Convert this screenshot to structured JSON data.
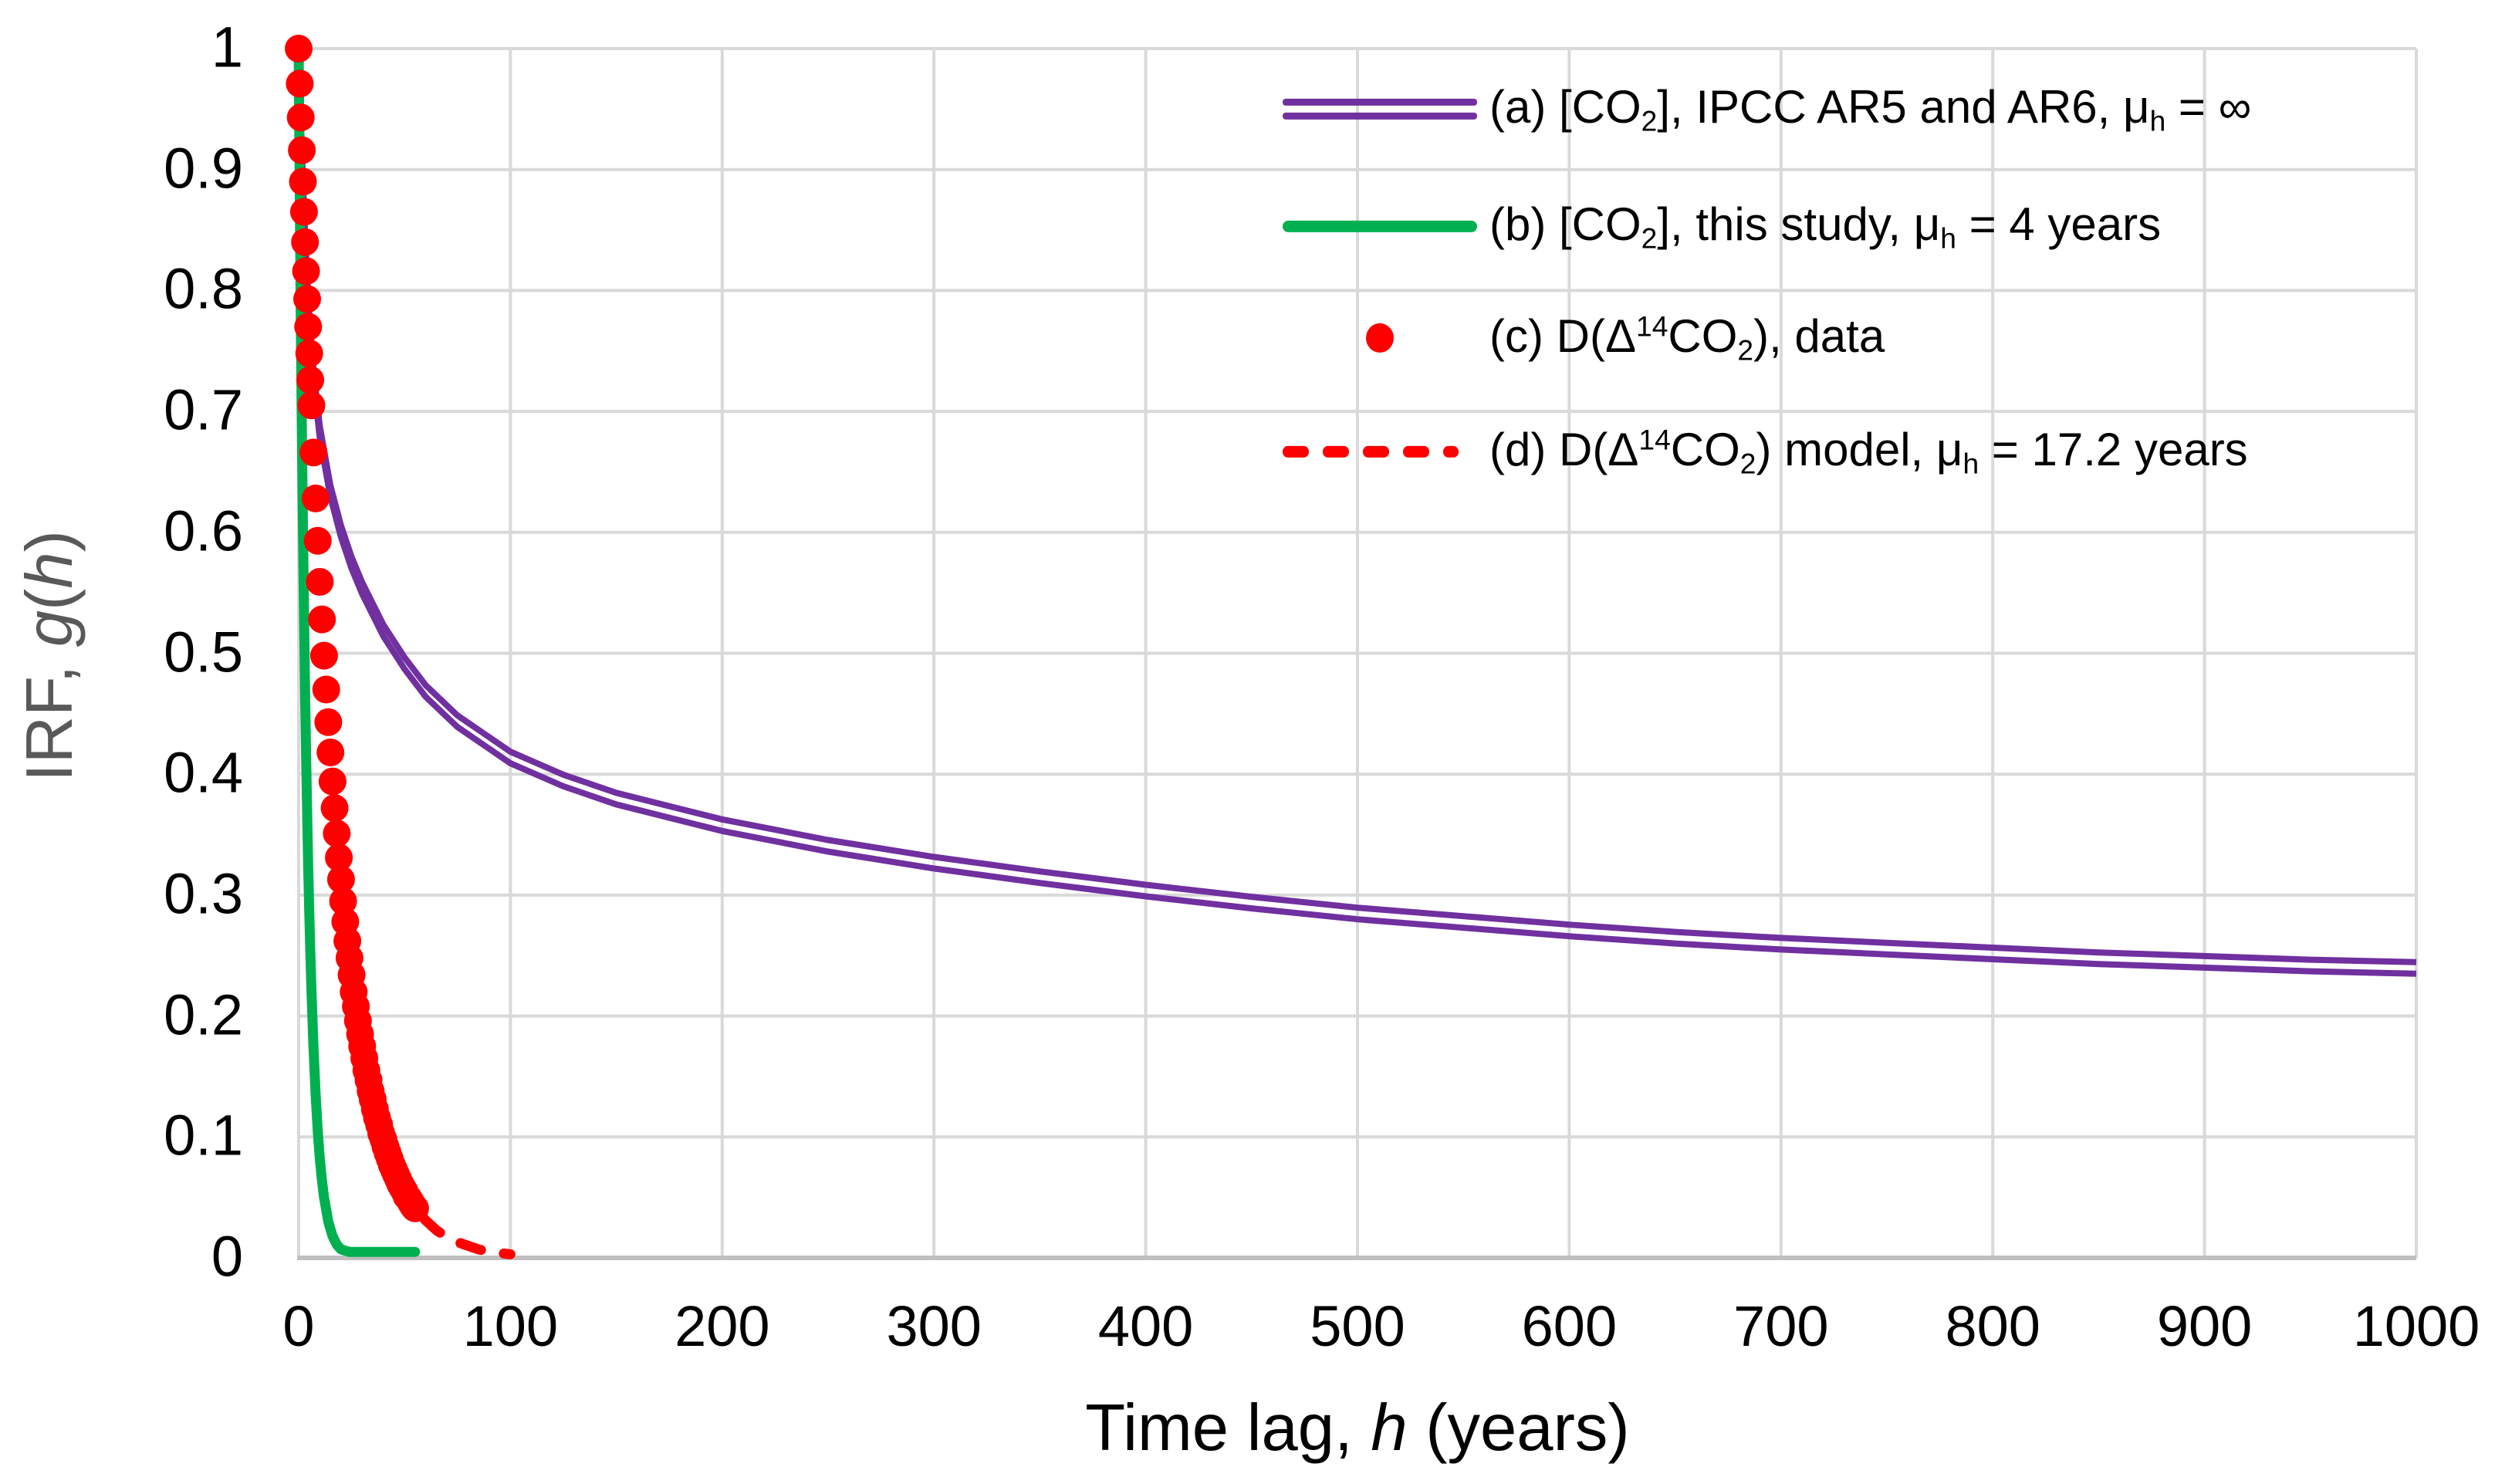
{
  "figure": {
    "background": "#FFFFFF"
  },
  "colors": {
    "gridline": "#D9D9D9",
    "axis_line": "#BFBFBF",
    "tick_label": "#000000",
    "x_title": "#000000",
    "y_title": "#595959",
    "purple": "#7030A0",
    "green": "#00B050",
    "red": "#FF0000"
  },
  "chart_data": {
    "type": "line",
    "title": "",
    "xlabel_parts": [
      {
        "t": "Time lag, "
      },
      {
        "t": "h",
        "i": true
      },
      {
        "t": " (years)"
      }
    ],
    "ylabel_parts": [
      {
        "t": "IRF, "
      },
      {
        "t": "g",
        "i": true
      },
      {
        "t": "("
      },
      {
        "t": "h",
        "i": true
      },
      {
        "t": ")"
      }
    ],
    "xlim": [
      0,
      1000
    ],
    "ylim": [
      0,
      1
    ],
    "grid": true,
    "legend_position": "top-right-inside",
    "x_ticks": [
      0,
      100,
      200,
      300,
      400,
      500,
      600,
      700,
      800,
      900,
      1000
    ],
    "x_tick_labels": [
      "0",
      "100",
      "200",
      "300",
      "400",
      "500",
      "600",
      "700",
      "800",
      "900",
      "1000"
    ],
    "y_ticks": [
      0,
      0.1,
      0.2,
      0.3,
      0.4,
      0.5,
      0.6,
      0.7,
      0.8,
      0.9,
      1
    ],
    "y_tick_labels": [
      "0",
      "0.1",
      "0.2",
      "0.3",
      "0.4",
      "0.5",
      "0.6",
      "0.7",
      "0.8",
      "0.9",
      "1"
    ],
    "series": [
      {
        "id": "a",
        "type": "line",
        "style": "double-line",
        "color": "#7030A0",
        "mu_h": "infinity",
        "name_parts": [
          {
            "t": "(a) [CO"
          },
          {
            "t": "2",
            "sub": true
          },
          {
            "t": "], IPCC AR5 and AR6, μ"
          },
          {
            "t": "h",
            "sub": true
          },
          {
            "t": " = ∞"
          }
        ],
        "h": [
          0,
          1,
          2,
          3,
          4,
          5,
          7,
          10,
          15,
          20,
          25,
          30,
          40,
          50,
          60,
          75,
          100,
          125,
          150,
          200,
          250,
          300,
          350,
          400,
          450,
          500,
          550,
          600,
          650,
          700,
          750,
          800,
          850,
          900,
          950,
          1000
        ],
        "g": [
          1.0,
          0.935,
          0.881,
          0.838,
          0.801,
          0.772,
          0.725,
          0.678,
          0.629,
          0.596,
          0.57,
          0.549,
          0.514,
          0.487,
          0.464,
          0.439,
          0.409,
          0.39,
          0.375,
          0.353,
          0.336,
          0.322,
          0.31,
          0.299,
          0.289,
          0.28,
          0.273,
          0.266,
          0.26,
          0.255,
          0.251,
          0.247,
          0.243,
          0.24,
          0.237,
          0.235
        ]
      },
      {
        "id": "b",
        "type": "line",
        "style": "solid-thick",
        "color": "#00B050",
        "mu_h": "4 years",
        "name_parts": [
          {
            "t": "(b) [CO"
          },
          {
            "t": "2",
            "sub": true
          },
          {
            "t": "], this study, μ"
          },
          {
            "t": "h",
            "sub": true
          },
          {
            "t": " = 4 years"
          }
        ],
        "h": [
          0,
          0.5,
          1,
          1.5,
          2,
          2.5,
          3,
          3.5,
          4,
          4.5,
          5,
          5.5,
          6,
          7,
          8,
          9,
          10,
          11,
          12,
          14,
          16,
          18,
          20,
          24,
          28,
          32,
          40,
          48,
          55
        ],
        "g": [
          1.0,
          0.882,
          0.779,
          0.687,
          0.607,
          0.535,
          0.472,
          0.417,
          0.368,
          0.325,
          0.287,
          0.253,
          0.223,
          0.174,
          0.135,
          0.105,
          0.082,
          0.064,
          0.05,
          0.03,
          0.018,
          0.011,
          0.007,
          0.005,
          0.005,
          0.005,
          0.005,
          0.005,
          0.005
        ]
      },
      {
        "id": "c",
        "type": "scatter",
        "style": "dots",
        "color": "#FF0000",
        "name_parts": [
          {
            "t": "(c) D(Δ"
          },
          {
            "t": "14",
            "sup": true
          },
          {
            "t": "CO"
          },
          {
            "t": "2",
            "sub": true
          },
          {
            "t": "), data"
          }
        ],
        "h": [
          0,
          0.5,
          1,
          1.5,
          2,
          2.5,
          3,
          3.5,
          4,
          4.5,
          5,
          5.5,
          6,
          7,
          8,
          9,
          10,
          11,
          12,
          13,
          14,
          15,
          16,
          17,
          18,
          19,
          20,
          21,
          22,
          23,
          24,
          25,
          26,
          27,
          28,
          29,
          30,
          31,
          32,
          33,
          34,
          35,
          36,
          37,
          38,
          39,
          40,
          41,
          42,
          43,
          44,
          45,
          46,
          47,
          48,
          49,
          50,
          51,
          52,
          53,
          54,
          55
        ],
        "g": [
          1.0,
          0.971,
          0.943,
          0.916,
          0.89,
          0.865,
          0.84,
          0.816,
          0.793,
          0.77,
          0.748,
          0.726,
          0.705,
          0.666,
          0.628,
          0.593,
          0.559,
          0.528,
          0.498,
          0.47,
          0.443,
          0.418,
          0.394,
          0.372,
          0.351,
          0.331,
          0.313,
          0.295,
          0.278,
          0.262,
          0.248,
          0.234,
          0.22,
          0.208,
          0.196,
          0.185,
          0.175,
          0.165,
          0.155,
          0.147,
          0.138,
          0.131,
          0.123,
          0.116,
          0.11,
          0.103,
          0.098,
          0.092,
          0.087,
          0.082,
          0.077,
          0.073,
          0.069,
          0.065,
          0.061,
          0.058,
          0.055,
          0.051,
          0.049,
          0.046,
          0.043,
          0.041
        ]
      },
      {
        "id": "d",
        "type": "line",
        "style": "dashed",
        "color": "#FF0000",
        "mu_h": "17.2 years",
        "name_parts": [
          {
            "t": "(d) D(Δ"
          },
          {
            "t": "14",
            "sup": true
          },
          {
            "t": "CO"
          },
          {
            "t": "2",
            "sub": true
          },
          {
            "t": ") model, μ"
          },
          {
            "t": "h",
            "sub": true
          },
          {
            "t": " = 17.2 years"
          }
        ],
        "h": [
          40,
          45,
          50,
          55,
          60,
          65,
          70,
          75,
          80,
          85,
          90,
          95,
          100
        ],
        "g": [
          0.098,
          0.073,
          0.055,
          0.041,
          0.031,
          0.023,
          0.017,
          0.013,
          0.01,
          0.007,
          0.005,
          0.004,
          0.003
        ]
      }
    ]
  }
}
